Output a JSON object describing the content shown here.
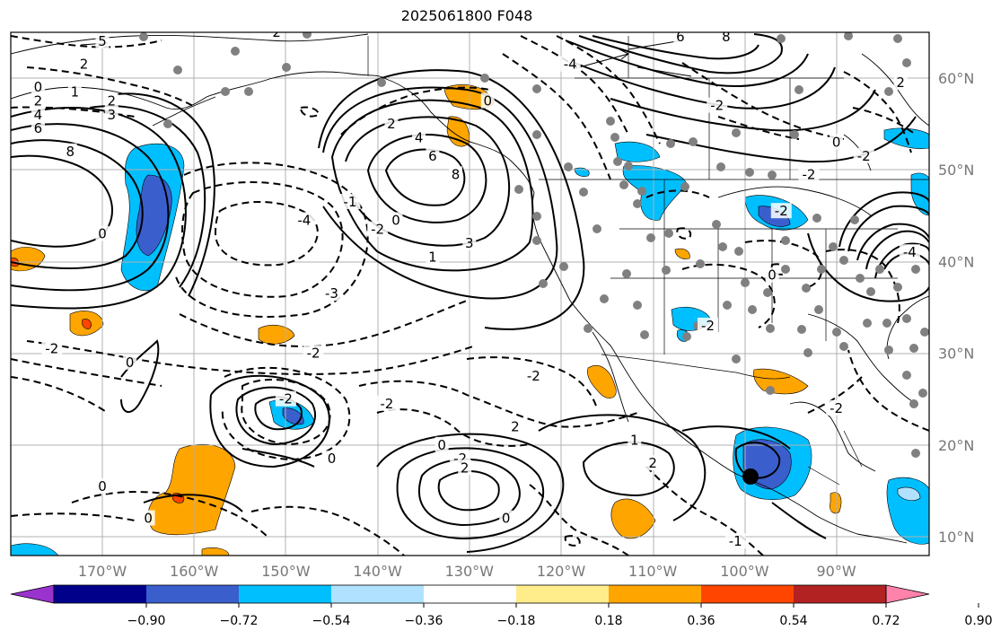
{
  "title": "2025061800 F048",
  "map": {
    "lat_labels": [
      {
        "text": "60°N",
        "value": 60
      },
      {
        "text": "50°N",
        "value": 50
      },
      {
        "text": "40°N",
        "value": 40
      },
      {
        "text": "30°N",
        "value": 30
      },
      {
        "text": "20°N",
        "value": 20
      },
      {
        "text": "10°N",
        "value": 10
      }
    ],
    "lon_labels": [
      {
        "text": "170°W",
        "value": -170
      },
      {
        "text": "160°W",
        "value": -160
      },
      {
        "text": "150°W",
        "value": -150
      },
      {
        "text": "140°W",
        "value": -140
      },
      {
        "text": "130°W",
        "value": -130
      },
      {
        "text": "120°W",
        "value": -120
      },
      {
        "text": "110°W",
        "value": -110
      },
      {
        "text": "100°W",
        "value": -100
      },
      {
        "text": "90°W",
        "value": -90
      }
    ],
    "contour_labels": [
      {
        "text": "0",
        "lon": -177,
        "lat": 59
      },
      {
        "text": "2",
        "lon": -177,
        "lat": 57.5
      },
      {
        "text": "4",
        "lon": -177,
        "lat": 56
      },
      {
        "text": "6",
        "lon": -177,
        "lat": 54.5
      },
      {
        "text": "8",
        "lon": -173.5,
        "lat": 52
      },
      {
        "text": "1",
        "lon": -173,
        "lat": 58.5
      },
      {
        "text": "2",
        "lon": -169,
        "lat": 57.5
      },
      {
        "text": "3",
        "lon": -169,
        "lat": 56
      },
      {
        "text": "2",
        "lon": -172,
        "lat": 61.5
      },
      {
        "text": "5",
        "lon": -170,
        "lat": 64
      },
      {
        "text": "2",
        "lon": -151,
        "lat": 65
      },
      {
        "text": "8",
        "lon": -131.5,
        "lat": 49.5
      },
      {
        "text": "6",
        "lon": -134,
        "lat": 51.5
      },
      {
        "text": "4",
        "lon": -135.5,
        "lat": 53.5
      },
      {
        "text": "2",
        "lon": -138.5,
        "lat": 55
      },
      {
        "text": "3",
        "lon": -130,
        "lat": 42
      },
      {
        "text": "1",
        "lon": -134,
        "lat": 40.5
      },
      {
        "text": "0",
        "lon": -138,
        "lat": 44.5
      },
      {
        "text": "-1",
        "lon": -143,
        "lat": 46.5
      },
      {
        "text": "-4",
        "lon": -148,
        "lat": 44.5
      },
      {
        "text": "-3",
        "lon": -145,
        "lat": 36.5
      },
      {
        "text": "-2",
        "lon": -140,
        "lat": 43.5
      },
      {
        "text": "0",
        "lon": -170,
        "lat": 43
      },
      {
        "text": "-2",
        "lon": -175.5,
        "lat": 30.5
      },
      {
        "text": "-2",
        "lon": -147,
        "lat": 30
      },
      {
        "text": "-2",
        "lon": -150,
        "lat": 25
      },
      {
        "text": "0",
        "lon": -128,
        "lat": 57.5
      },
      {
        "text": "-2",
        "lon": -139,
        "lat": 24.5
      },
      {
        "text": "-2",
        "lon": -123,
        "lat": 27.5
      },
      {
        "text": "2",
        "lon": -125,
        "lat": 22
      },
      {
        "text": "0",
        "lon": -133,
        "lat": 20
      },
      {
        "text": "-2",
        "lon": -131,
        "lat": 18.5
      },
      {
        "text": "2",
        "lon": -130.5,
        "lat": 17.5
      },
      {
        "text": "0",
        "lon": -126,
        "lat": 12
      },
      {
        "text": "1",
        "lon": -112,
        "lat": 20.5
      },
      {
        "text": "2",
        "lon": -110,
        "lat": 18
      },
      {
        "text": "0",
        "lon": -165,
        "lat": 12
      },
      {
        "text": "0",
        "lon": -167,
        "lat": 29
      },
      {
        "text": "0",
        "lon": -145,
        "lat": 18.5
      },
      {
        "text": "0",
        "lon": -170,
        "lat": 15.5
      },
      {
        "text": "-1",
        "lon": -101,
        "lat": 9.5
      },
      {
        "text": "8",
        "lon": -102,
        "lat": 64.5
      },
      {
        "text": "6",
        "lon": -107,
        "lat": 64.5
      },
      {
        "text": "-4",
        "lon": -119,
        "lat": 61.5
      },
      {
        "text": "-2",
        "lon": -103,
        "lat": 57
      },
      {
        "text": "0",
        "lon": -90,
        "lat": 53
      },
      {
        "text": "-2",
        "lon": -93,
        "lat": 49.5
      },
      {
        "text": "-2",
        "lon": -87,
        "lat": 51.5
      },
      {
        "text": "2",
        "lon": -83,
        "lat": 59.5
      },
      {
        "text": "-2",
        "lon": -96,
        "lat": 45.5
      },
      {
        "text": "-4",
        "lon": -82,
        "lat": 41
      },
      {
        "text": "-2",
        "lon": -104,
        "lat": 33
      },
      {
        "text": "-2",
        "lon": -90,
        "lat": 24
      },
      {
        "text": "0",
        "lon": -97,
        "lat": 38.5
      }
    ]
  },
  "colorbar": {
    "tick_labels": [
      "−0.90",
      "−0.72",
      "−0.54",
      "−0.36",
      "−0.18",
      "0.18",
      "0.36",
      "0.54",
      "0.72",
      "0.90"
    ],
    "colors": [
      "#9a32cd",
      "#00008b",
      "#3a5fcd",
      "#00bfff",
      "#b0e2ff",
      "#ffffff",
      "#ffec8b",
      "#ffa500",
      "#ff4500",
      "#b22222",
      "#ff82ab"
    ]
  }
}
